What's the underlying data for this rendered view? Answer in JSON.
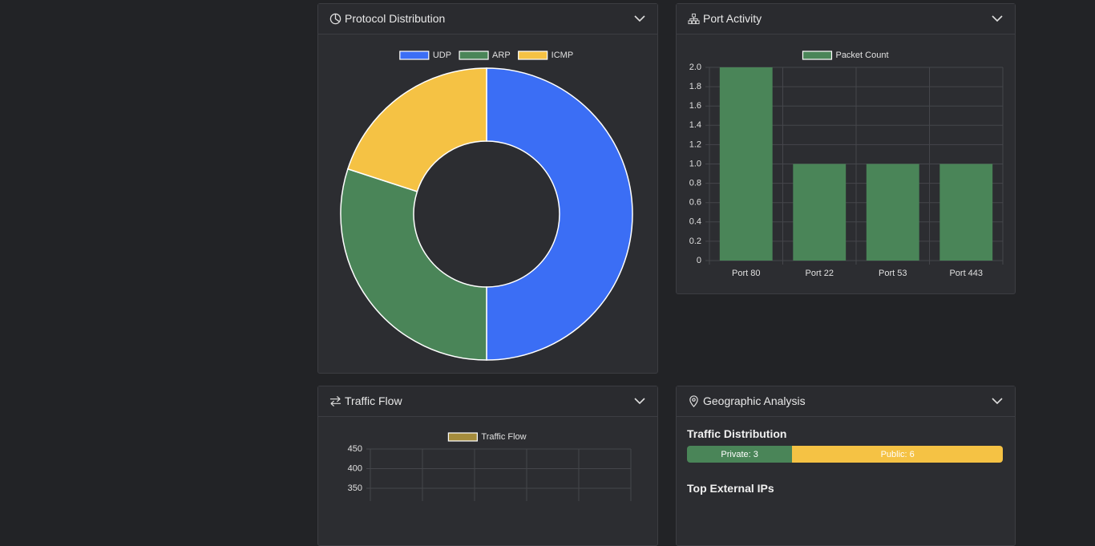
{
  "chart_data": [
    {
      "type": "pie",
      "title": "Protocol Distribution",
      "donut": true,
      "categories": [
        "UDP",
        "ARP",
        "ICMP"
      ],
      "values": [
        50,
        30,
        20
      ],
      "colors": [
        "#3b6ef5",
        "#4a8558",
        "#f5c244"
      ]
    },
    {
      "type": "bar",
      "title": "Port Activity",
      "categories": [
        "Port 80",
        "Port 22",
        "Port 53",
        "Port 443"
      ],
      "series": [
        {
          "name": "Packet Count",
          "color": "#4a8558",
          "values": [
            2,
            1,
            1,
            1
          ]
        }
      ],
      "ylim": [
        0,
        2
      ],
      "yticks": [
        0,
        0.2,
        0.4,
        0.6,
        0.8,
        {
          "value": 1,
          "label": "1.0"
        },
        1.2,
        1.4,
        1.6,
        1.8,
        {
          "value": 2,
          "label": "2.0"
        }
      ],
      "grid": true
    },
    {
      "type": "line",
      "title": "Traffic Flow",
      "series": [
        {
          "name": "Traffic Flow",
          "color": "#a58c3c"
        }
      ],
      "ylim": [
        350,
        450
      ],
      "yticks": [
        350,
        400,
        450
      ],
      "grid": true
    }
  ],
  "geo": {
    "title": "Geographic Analysis",
    "distribution_title": "Traffic Distribution",
    "segments": [
      {
        "label": "Private: 3",
        "value": 3,
        "color": "#4a8558"
      },
      {
        "label": "Public: 6",
        "value": 6,
        "color": "#f5c244"
      }
    ],
    "top_ips_title": "Top External IPs"
  }
}
